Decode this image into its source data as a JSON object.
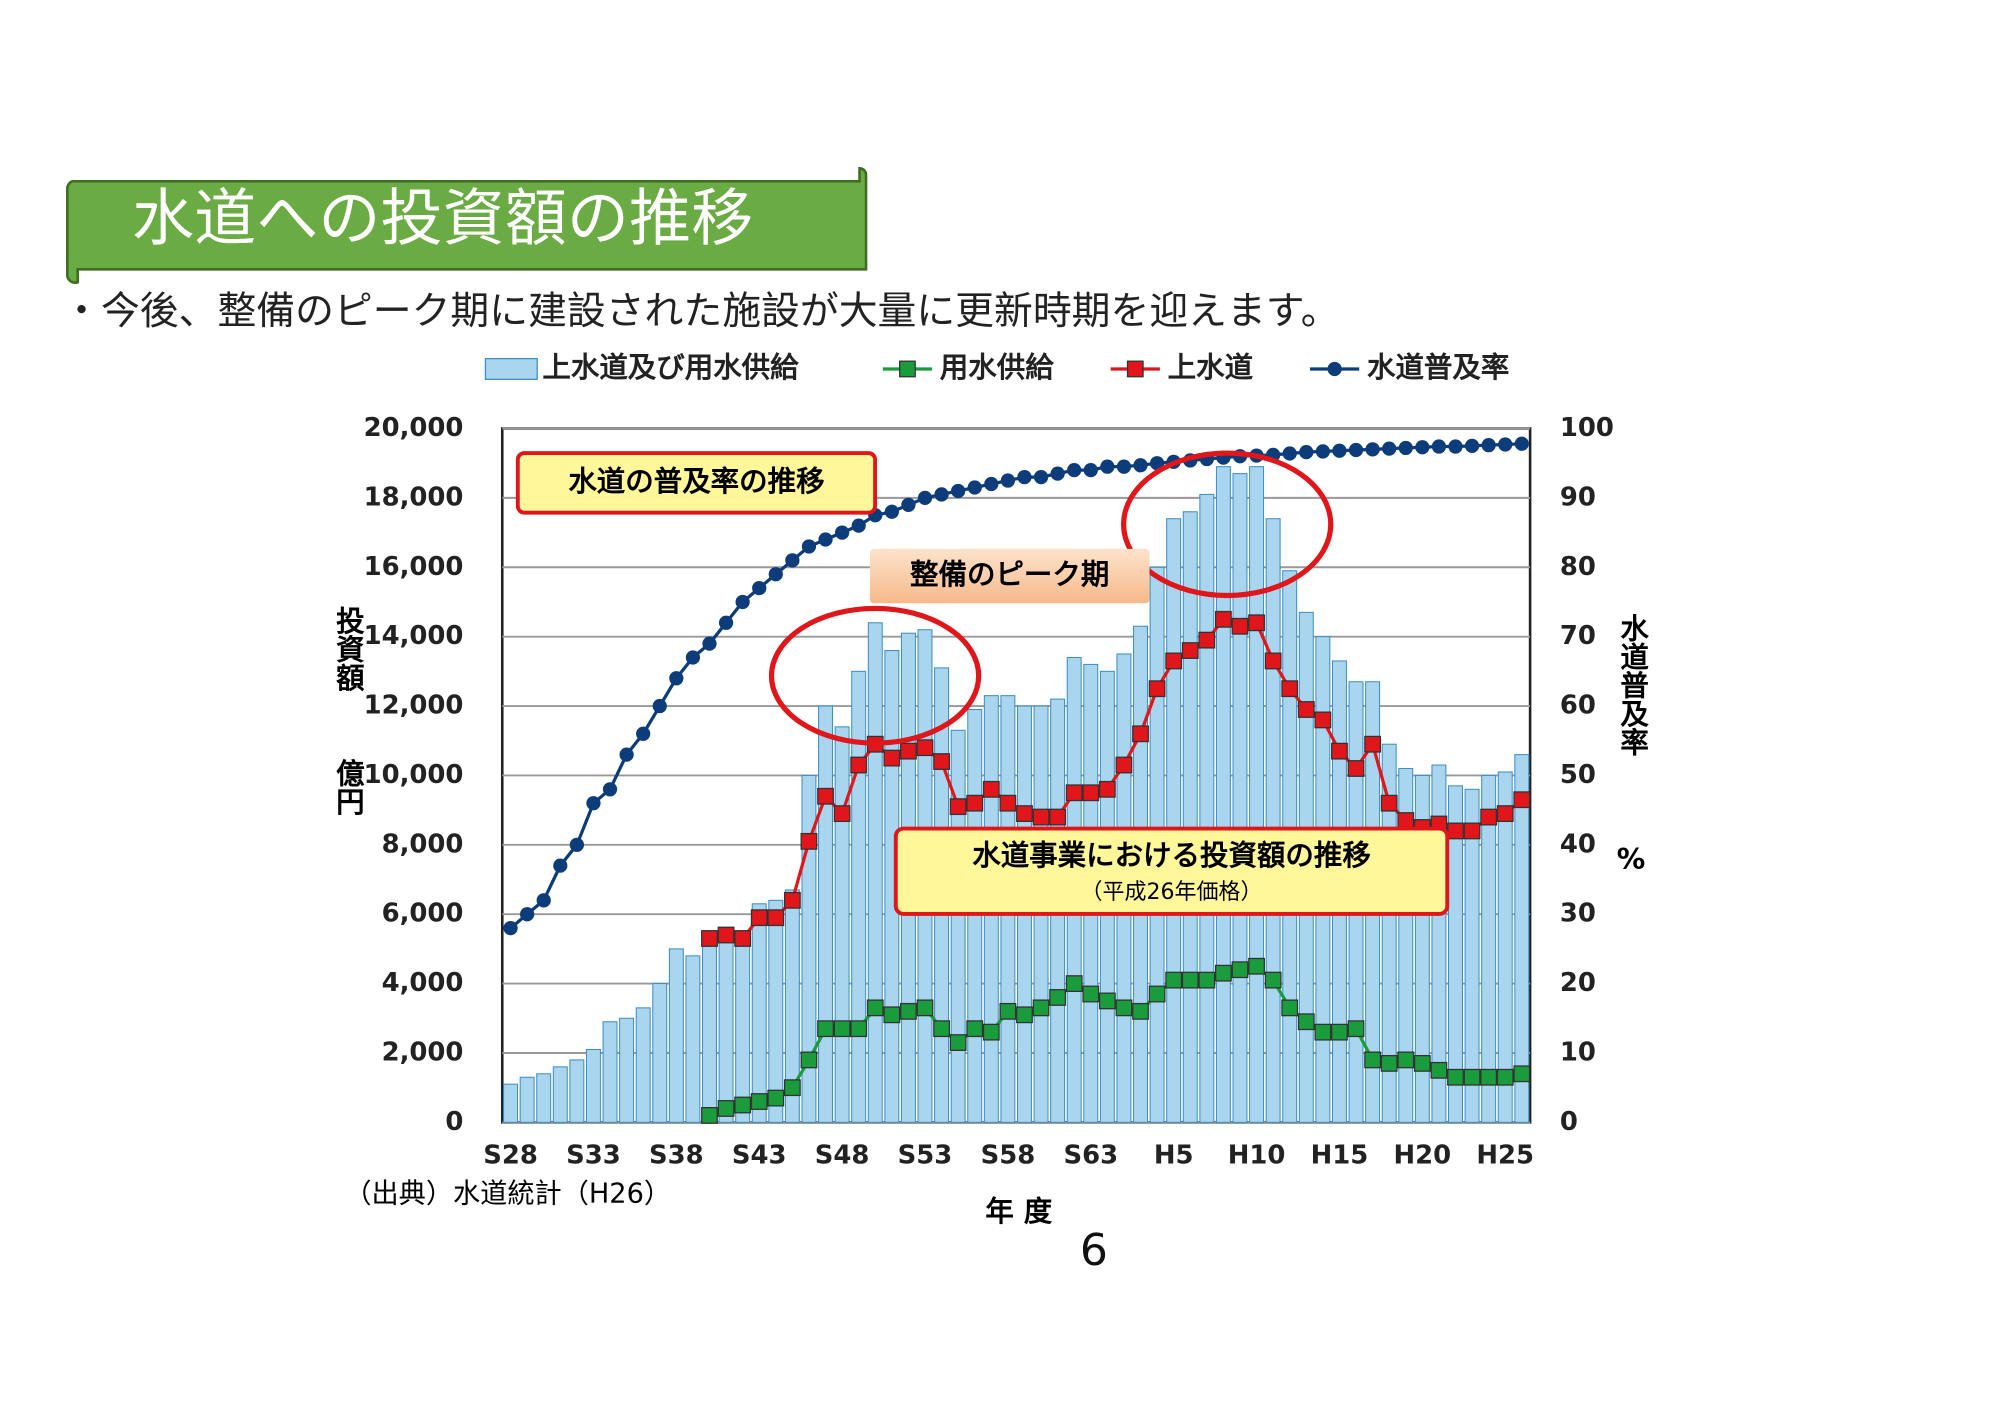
{
  "title": "水道への投資額の推移",
  "bullet": "・今後、整備のピーク期に建設された施設が大量に更新時期を迎えます。",
  "page_number": "6",
  "chart_data": {
    "type": "bar",
    "annotations": [
      "水道の普及率の推移",
      "整備のピーク期",
      "水道事業における投資額の推移",
      "（平成26年価格）"
    ],
    "ylabel": "投資額",
    "yunit": "億円",
    "y2label": "水道普及率",
    "y2unit": "%",
    "xlabel": "年 度",
    "source": "（出典）水道統計（H26）",
    "categories": [
      "S28",
      null,
      null,
      null,
      null,
      "S33",
      null,
      null,
      null,
      null,
      "S38",
      null,
      null,
      null,
      null,
      "S43",
      null,
      null,
      null,
      null,
      "S48",
      null,
      null,
      null,
      null,
      "S53",
      null,
      null,
      null,
      null,
      "S58",
      null,
      null,
      null,
      null,
      "S63",
      null,
      null,
      null,
      null,
      "H5",
      null,
      null,
      null,
      null,
      "H10",
      null,
      null,
      null,
      null,
      "H15",
      null,
      null,
      null,
      null,
      "H20",
      null,
      null,
      null,
      null,
      "H25",
      null
    ],
    "series": [
      {
        "name": "上水道及び用水供給",
        "type": "bar",
        "color": "#a9d5ee",
        "values": [
          1100,
          1300,
          1400,
          1600,
          1800,
          2100,
          2900,
          3000,
          3300,
          4000,
          5000,
          4800,
          5300,
          5500,
          5500,
          6300,
          6400,
          6700,
          10000,
          12000,
          11400,
          13000,
          14400,
          13600,
          14100,
          14200,
          13100,
          11300,
          11900,
          12300,
          12300,
          12000,
          12000,
          12200,
          13400,
          13200,
          13000,
          13500,
          14300,
          16000,
          17400,
          17600,
          18100,
          18900,
          18700,
          18900,
          17400,
          15900,
          14700,
          14000,
          13300,
          12700,
          12700,
          10900,
          10200,
          10000,
          10300,
          9700,
          9600,
          10000,
          10100,
          10600
        ]
      },
      {
        "name": "用水供給",
        "type": "line",
        "marker": "square",
        "color": "#1a9c3c",
        "values": [
          null,
          null,
          null,
          null,
          null,
          null,
          null,
          null,
          null,
          null,
          null,
          null,
          200,
          400,
          500,
          600,
          700,
          1000,
          1800,
          2700,
          2700,
          2700,
          3300,
          3100,
          3200,
          3300,
          2700,
          2300,
          2700,
          2600,
          3200,
          3100,
          3300,
          3600,
          4000,
          3700,
          3500,
          3300,
          3200,
          3700,
          4100,
          4100,
          4100,
          4300,
          4400,
          4500,
          4100,
          3300,
          2900,
          2600,
          2600,
          2700,
          1800,
          1700,
          1800,
          1700,
          1500,
          1300,
          1300,
          1300,
          1300,
          1400
        ]
      },
      {
        "name": "上水道",
        "type": "line",
        "marker": "square",
        "color": "#e0161b",
        "values": [
          null,
          null,
          null,
          null,
          null,
          null,
          null,
          null,
          null,
          null,
          null,
          null,
          5300,
          5400,
          5300,
          5900,
          5900,
          6400,
          8100,
          9400,
          8900,
          10300,
          10900,
          10500,
          10700,
          10800,
          10400,
          9100,
          9200,
          9600,
          9200,
          8900,
          8800,
          8800,
          9500,
          9500,
          9600,
          10300,
          11200,
          12500,
          13300,
          13600,
          13900,
          14500,
          14300,
          14400,
          13300,
          12500,
          11900,
          11600,
          10700,
          10200,
          10900,
          9200,
          8700,
          8500,
          8600,
          8400,
          8400,
          8800,
          8900,
          9300
        ]
      },
      {
        "name": "水道普及率",
        "type": "line",
        "marker": "circle",
        "axis": "y2",
        "color": "#0d3c7a",
        "values": [
          28,
          30,
          32,
          37,
          40,
          46,
          48,
          53,
          56,
          60,
          64,
          67,
          69,
          72,
          75,
          77,
          79,
          81,
          83,
          84,
          85,
          86,
          87.5,
          88,
          89,
          90,
          90.5,
          91,
          91.5,
          92,
          92.5,
          93,
          93,
          93.5,
          94,
          94,
          94.5,
          94.5,
          94.7,
          95,
          95.2,
          95.4,
          95.6,
          95.8,
          96,
          96.1,
          96.2,
          96.4,
          96.6,
          96.7,
          96.8,
          96.9,
          97,
          97.1,
          97.2,
          97.3,
          97.4,
          97.4,
          97.5,
          97.6,
          97.7,
          97.8
        ]
      }
    ],
    "ylim": [
      0,
      20000
    ],
    "yticks": [
      0,
      {
        "value": 2000,
        "label": "2,000"
      },
      {
        "value": 4000,
        "label": "4,000"
      },
      {
        "value": 6000,
        "label": "6,000"
      },
      {
        "value": 8000,
        "label": "8,000"
      },
      {
        "value": 10000,
        "label": "10,000"
      },
      {
        "value": 12000,
        "label": "12,000"
      },
      {
        "value": 14000,
        "label": "14,000"
      },
      {
        "value": 16000,
        "label": "16,000"
      },
      {
        "value": 18000,
        "label": "18,000"
      },
      {
        "value": 20000,
        "label": "20,000"
      }
    ],
    "y2lim": [
      0,
      100
    ],
    "y2ticks": [
      0,
      10,
      20,
      30,
      40,
      50,
      60,
      70,
      80,
      90,
      100
    ],
    "grid": true
  }
}
